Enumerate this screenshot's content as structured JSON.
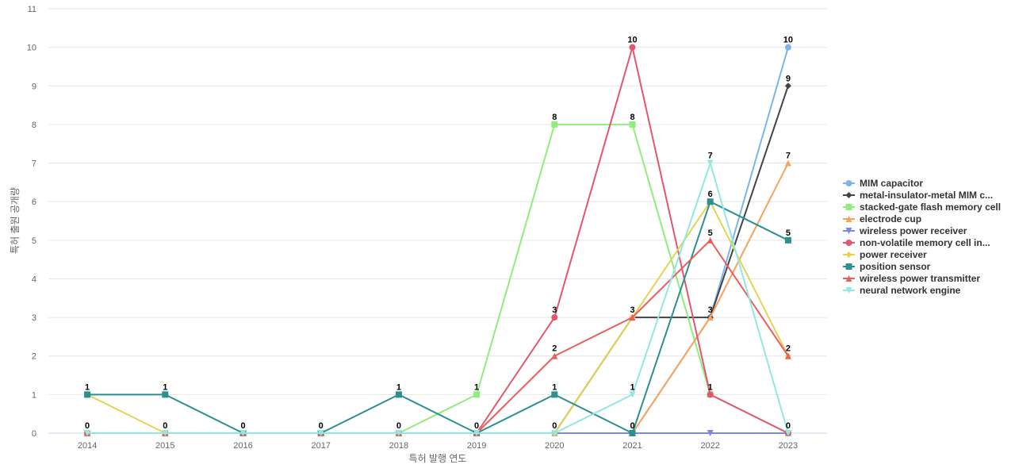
{
  "chart_data": {
    "type": "line",
    "xlabel": "특허 발행 연도",
    "ylabel": "특허 출원 공개량",
    "x": [
      "2014",
      "2015",
      "2016",
      "2017",
      "2018",
      "2019",
      "2020",
      "2021",
      "2022",
      "2023"
    ],
    "ylim": [
      0,
      11
    ],
    "yticks": [
      0,
      1,
      2,
      3,
      4,
      5,
      6,
      7,
      8,
      9,
      10,
      11
    ],
    "grid": true,
    "legend_position": "right",
    "series": [
      {
        "name": "MIM capacitor",
        "color": "#7cb5ec",
        "marker": "circle",
        "values": [
          0,
          0,
          0,
          0,
          0,
          0,
          0,
          0,
          3,
          10
        ]
      },
      {
        "name": "metal-insulator-metal MIM c...",
        "color": "#434348",
        "marker": "diamond",
        "values": [
          0,
          0,
          0,
          0,
          0,
          0,
          0,
          3,
          3,
          9
        ]
      },
      {
        "name": "stacked-gate flash memory cell",
        "color": "#90ed7d",
        "marker": "square",
        "values": [
          0,
          0,
          0,
          0,
          0,
          1,
          8,
          8,
          1,
          0
        ]
      },
      {
        "name": "electrode cup",
        "color": "#f7a35c",
        "marker": "triangle",
        "values": [
          0,
          0,
          0,
          0,
          0,
          0,
          0,
          0,
          3,
          7
        ]
      },
      {
        "name": "wireless power receiver",
        "color": "#8085e9",
        "marker": "triangle-down",
        "values": [
          0,
          0,
          0,
          0,
          0,
          0,
          0,
          0,
          0,
          0
        ]
      },
      {
        "name": "non-volatile memory cell in...",
        "color": "#e4566f",
        "marker": "circle",
        "values": [
          0,
          0,
          0,
          0,
          0,
          0,
          3,
          10,
          1,
          0
        ]
      },
      {
        "name": "power receiver",
        "color": "#e4d354",
        "marker": "diamond",
        "values": [
          1,
          0,
          0,
          0,
          0,
          0,
          0,
          3,
          6,
          2
        ]
      },
      {
        "name": "position sensor",
        "color": "#2b908f",
        "marker": "square",
        "values": [
          1,
          1,
          0,
          0,
          1,
          0,
          1,
          0,
          6,
          5
        ]
      },
      {
        "name": "wireless power transmitter",
        "color": "#ea5f5a",
        "marker": "triangle",
        "values": [
          0,
          0,
          0,
          0,
          0,
          0,
          2,
          3,
          5,
          2
        ]
      },
      {
        "name": "neural network engine",
        "color": "#91e8e1",
        "marker": "triangle-down",
        "values": [
          0,
          0,
          0,
          0,
          0,
          0,
          0,
          1,
          7,
          0
        ]
      }
    ],
    "data_labels": [
      {
        "x": "2014",
        "values": [
          1,
          0
        ]
      },
      {
        "x": "2015",
        "values": [
          1,
          0
        ]
      },
      {
        "x": "2016",
        "values": [
          0
        ]
      },
      {
        "x": "2017",
        "values": [
          0
        ]
      },
      {
        "x": "2018",
        "values": [
          1,
          0
        ]
      },
      {
        "x": "2019",
        "values": [
          1,
          0
        ]
      },
      {
        "x": "2020",
        "values": [
          8,
          3,
          2,
          1,
          0
        ]
      },
      {
        "x": "2021",
        "values": [
          10,
          8,
          3,
          1,
          0
        ]
      },
      {
        "x": "2022",
        "values": [
          7,
          6,
          5,
          3,
          1
        ]
      },
      {
        "x": "2023",
        "values": [
          10,
          9,
          7,
          5,
          2,
          0
        ]
      }
    ]
  }
}
